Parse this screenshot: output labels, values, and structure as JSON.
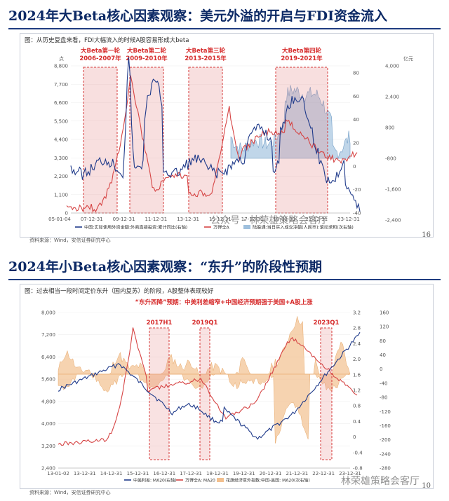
{
  "slide1": {
    "title": "2024年大Beta核心因素观察：美元外溢的开启与FDI资金流入",
    "caption": "图：从历史复盘来看，FDI大幅流入的时候A股容易形成大beta",
    "left_unit": "点",
    "right_unit": "亿元",
    "left_ticks": [
      "8,800",
      "7,700",
      "6,600",
      "5,500",
      "4,400",
      "3,300",
      "2,200",
      "1,100",
      "0"
    ],
    "right_ticks_blue": [
      "80",
      "60",
      "40",
      "20",
      "0",
      "-20",
      "-40"
    ],
    "right_ticks_amt": [
      "4,000",
      "2,400",
      "800",
      "-800",
      "-1,600",
      "-2,400"
    ],
    "x_ticks": [
      "05-01-04",
      "07-12-31",
      "09-12-31",
      "11-12-31",
      "13-12-31",
      "15-12-31",
      "17-12-31",
      "19-12-31",
      "21-12-31",
      "23-12-31"
    ],
    "periods": [
      {
        "label": "大Beta第一轮",
        "years": "2006-2007年"
      },
      {
        "label": "大Beta第二轮",
        "years": "2009-2010年"
      },
      {
        "label": "大Beta第三轮",
        "years": "2013-2015年"
      },
      {
        "label": "大Beta第四轮",
        "years": "2019-2021年"
      }
    ],
    "legend": [
      {
        "label": "中国:实际使用外资金额:外商直接投资:累计同比(右轴)",
        "color": "#1f3a8a"
      },
      {
        "label": "万得全A",
        "color": "#d64545"
      },
      {
        "label": "陆股通:当日买入成交净额(人民币):滚动求和(次右轴)",
        "color": "#9fc0dd"
      }
    ],
    "source": "资料来源：Wind，安信证券研究中心",
    "page": "16",
    "watermark": "公众号 · 林荣雄策略会客厅"
  },
  "slide2": {
    "title": "2024年小Beta核心因素观察：“东升”的阶段性预期",
    "caption": "图：过去相当一段时间定价东升（国内复苏）的阶段，A股整体表现较好",
    "chart_title": "“东升西降”预期：中美利差缩窄+中国经济预期强于美国+A股上涨",
    "left_ticks": [
      "8,000",
      "7,200",
      "6,400",
      "5,600",
      "4,800",
      "4,000",
      "3,200",
      "2,400"
    ],
    "right_ticks_spread": [
      "3.2",
      "2.8",
      "2.4",
      "2.0",
      "1.6",
      "1.2",
      "0.8",
      "0.4",
      "0",
      "-0.4",
      "-0.8"
    ],
    "right_ticks_surprise": [
      "160",
      "120",
      "80",
      "40",
      "0",
      "-40",
      "-80",
      "-120",
      "-160",
      "-200",
      "-240",
      "-280"
    ],
    "x_ticks": [
      "13-01-02",
      "13-12-31",
      "14-12-31",
      "15-12-31",
      "16-12-31",
      "17-12-31",
      "18-12-31",
      "19-12-31",
      "20-12-31",
      "21-12-31",
      "22-12-31",
      "23-12-31"
    ],
    "periods": [
      "2017H1",
      "2019Q1",
      "2023Q1"
    ],
    "legend": [
      {
        "label": "中美利差: MA20(右轴)",
        "color": "#1f3a8a"
      },
      {
        "label": "万得全A: MA20",
        "color": "#d64545"
      },
      {
        "label": "花旗经济意外指数:中国-美国: MA20(次右轴)",
        "color": "#f2c08f"
      }
    ],
    "source": "资料来源：Wind，安信证券研究中心",
    "page": "10",
    "watermark": "林荣雄策略会客厅"
  }
}
